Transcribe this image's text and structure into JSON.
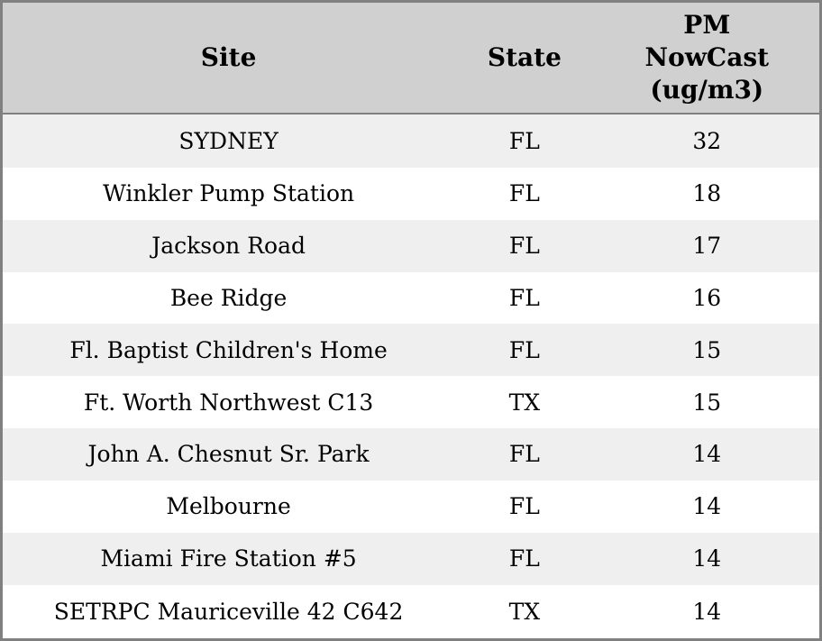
{
  "colors": {
    "border": "#808080",
    "header_bg": "#d0d0d0",
    "row_alt_bg": "#efefef",
    "row_bg": "#ffffff",
    "text": "#000000"
  },
  "chart_data": {
    "type": "table",
    "columns": [
      "Site",
      "State",
      "PM NowCast (ug/m3)"
    ],
    "header_labels": {
      "site": "Site",
      "state": "State",
      "pm_nowcast": "PM\nNowCast\n(ug/m3)"
    },
    "rows": [
      [
        "SYDNEY",
        "FL",
        "32"
      ],
      [
        "Winkler Pump Station",
        "FL",
        "18"
      ],
      [
        "Jackson Road",
        "FL",
        "17"
      ],
      [
        "Bee Ridge",
        "FL",
        "16"
      ],
      [
        "Fl. Baptist Children's Home",
        "FL",
        "15"
      ],
      [
        "Ft. Worth Northwest C13",
        "TX",
        "15"
      ],
      [
        "John A. Chesnut Sr. Park",
        "FL",
        "14"
      ],
      [
        "Melbourne",
        "FL",
        "14"
      ],
      [
        "Miami Fire Station #5",
        "FL",
        "14"
      ],
      [
        "SETRPC Mauriceville 42 C642",
        "TX",
        "14"
      ]
    ]
  }
}
